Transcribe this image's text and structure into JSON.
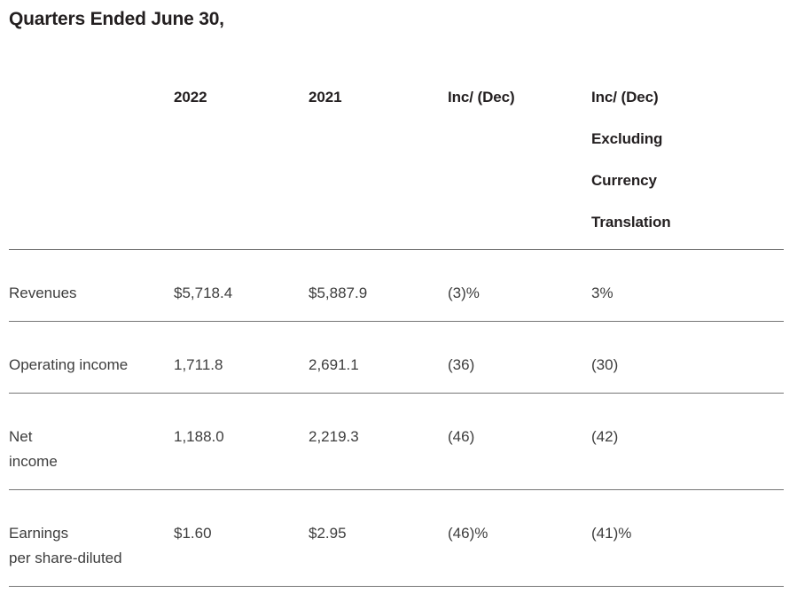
{
  "page": {
    "title": "Quarters Ended June 30,"
  },
  "table": {
    "columns": {
      "label": "",
      "y2022": "2022",
      "y2021": "2021",
      "inc_dec": "Inc/ (Dec)",
      "inc_dec_ex_currency": "Inc/ (Dec)\nExcluding\nCurrency\nTranslation"
    },
    "rows": [
      {
        "label": "Revenues",
        "y2022": "$5,718.4",
        "y2021": "$5,887.9",
        "inc_dec": "(3)%",
        "inc_dec_ex_currency": "3%"
      },
      {
        "label": "Operating income",
        "y2022": "1,711.8",
        "y2021": "2,691.1",
        "inc_dec": "(36)",
        "inc_dec_ex_currency": "(30)"
      },
      {
        "label": "Net\nincome",
        "y2022": "1,188.0",
        "y2021": "2,219.3",
        "inc_dec": "(46)",
        "inc_dec_ex_currency": "(42)"
      },
      {
        "label": "Earnings\nper share-diluted",
        "y2022": "$1.60",
        "y2021": "$2.95",
        "inc_dec": "(46)%",
        "inc_dec_ex_currency": "(41)%"
      }
    ]
  },
  "colors": {
    "heading_text": "#231f20",
    "body_text": "#3d3d3d",
    "rule": "#757575",
    "background": "#ffffff"
  }
}
